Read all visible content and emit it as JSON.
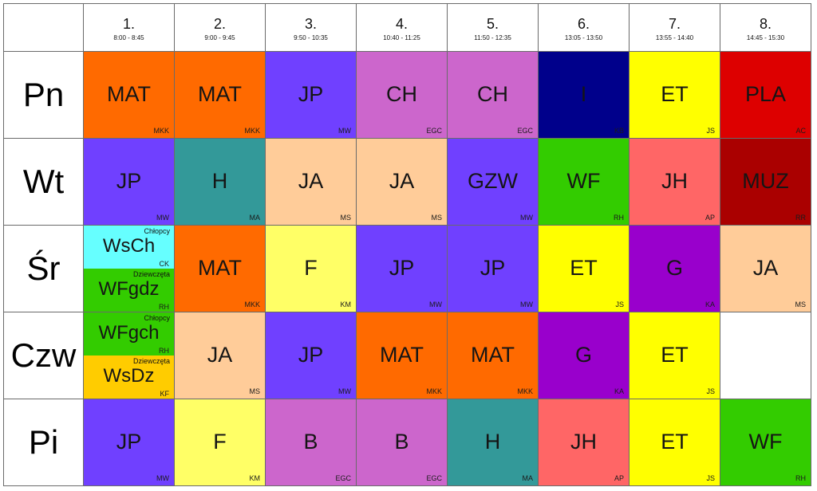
{
  "periods": [
    {
      "number": "1.",
      "time": "8:00 - 8:45"
    },
    {
      "number": "2.",
      "time": "9:00 - 9:45"
    },
    {
      "number": "3.",
      "time": "9:50 - 10:35"
    },
    {
      "number": "4.",
      "time": "10:40 - 11:25"
    },
    {
      "number": "5.",
      "time": "11:50 - 12:35"
    },
    {
      "number": "6.",
      "time": "13:05 - 13:50"
    },
    {
      "number": "7.",
      "time": "13:55 - 14:40"
    },
    {
      "number": "8.",
      "time": "14:45 - 15:30"
    }
  ],
  "days": [
    {
      "name": "Pn",
      "lessons": [
        {
          "subject": "MAT",
          "teacher": "MKK",
          "color": "#ff6a00"
        },
        {
          "subject": "MAT",
          "teacher": "MKK",
          "color": "#ff6a00"
        },
        {
          "subject": "JP",
          "teacher": "MW",
          "color": "#7040ff"
        },
        {
          "subject": "CH",
          "teacher": "EGC",
          "color": "#cc66cc"
        },
        {
          "subject": "CH",
          "teacher": "EGC",
          "color": "#cc66cc"
        },
        {
          "subject": "I",
          "teacher": "KB",
          "color": "#00008b"
        },
        {
          "subject": "ET",
          "teacher": "JS",
          "color": "#ffff00"
        },
        {
          "subject": "PLA",
          "teacher": "AC",
          "color": "#dd0000"
        }
      ]
    },
    {
      "name": "Wt",
      "lessons": [
        {
          "subject": "JP",
          "teacher": "MW",
          "color": "#7040ff"
        },
        {
          "subject": "H",
          "teacher": "MA",
          "color": "#339999"
        },
        {
          "subject": "JA",
          "teacher": "MS",
          "color": "#ffcc99"
        },
        {
          "subject": "JA",
          "teacher": "MS",
          "color": "#ffcc99"
        },
        {
          "subject": "GZW",
          "teacher": "MW",
          "color": "#7040ff"
        },
        {
          "subject": "WF",
          "teacher": "RH",
          "color": "#33cc00"
        },
        {
          "subject": "JH",
          "teacher": "AP",
          "color": "#ff6666"
        },
        {
          "subject": "MUZ",
          "teacher": "RR",
          "color": "#aa0000"
        }
      ]
    },
    {
      "name": "Śr",
      "lessons": [
        {
          "split": true,
          "parts": [
            {
              "note": "Chłopcy",
              "subject": "WsCh",
              "teacher": "CK",
              "color": "#66ffff"
            },
            {
              "note": "Dziewczęta",
              "subject": "WFgdz",
              "teacher": "RH",
              "color": "#33cc00"
            }
          ]
        },
        {
          "subject": "MAT",
          "teacher": "MKK",
          "color": "#ff6a00"
        },
        {
          "subject": "F",
          "teacher": "KM",
          "color": "#ffff66"
        },
        {
          "subject": "JP",
          "teacher": "MW",
          "color": "#7040ff"
        },
        {
          "subject": "JP",
          "teacher": "MW",
          "color": "#7040ff"
        },
        {
          "subject": "ET",
          "teacher": "JS",
          "color": "#ffff00"
        },
        {
          "subject": "G",
          "teacher": "KA",
          "color": "#9900cc"
        },
        {
          "subject": "JA",
          "teacher": "MS",
          "color": "#ffcc99"
        }
      ]
    },
    {
      "name": "Czw",
      "lessons": [
        {
          "split": true,
          "parts": [
            {
              "note": "Chłopcy",
              "subject": "WFgch",
              "teacher": "RH",
              "color": "#33cc00"
            },
            {
              "note": "Dziewczęta",
              "subject": "WsDz",
              "teacher": "KF",
              "color": "#ffcc00"
            }
          ]
        },
        {
          "subject": "JA",
          "teacher": "MS",
          "color": "#ffcc99"
        },
        {
          "subject": "JP",
          "teacher": "MW",
          "color": "#7040ff"
        },
        {
          "subject": "MAT",
          "teacher": "MKK",
          "color": "#ff6a00"
        },
        {
          "subject": "MAT",
          "teacher": "MKK",
          "color": "#ff6a00"
        },
        {
          "subject": "G",
          "teacher": "KA",
          "color": "#9900cc"
        },
        {
          "subject": "ET",
          "teacher": "JS",
          "color": "#ffff00"
        },
        {
          "empty": true
        }
      ]
    },
    {
      "name": "Pi",
      "lessons": [
        {
          "subject": "JP",
          "teacher": "MW",
          "color": "#7040ff"
        },
        {
          "subject": "F",
          "teacher": "KM",
          "color": "#ffff66"
        },
        {
          "subject": "B",
          "teacher": "EGC",
          "color": "#cc66cc"
        },
        {
          "subject": "B",
          "teacher": "EGC",
          "color": "#cc66cc"
        },
        {
          "subject": "H",
          "teacher": "MA",
          "color": "#339999"
        },
        {
          "subject": "JH",
          "teacher": "AP",
          "color": "#ff6666"
        },
        {
          "subject": "ET",
          "teacher": "JS",
          "color": "#ffff00"
        },
        {
          "subject": "WF",
          "teacher": "RH",
          "color": "#33cc00"
        }
      ]
    }
  ]
}
